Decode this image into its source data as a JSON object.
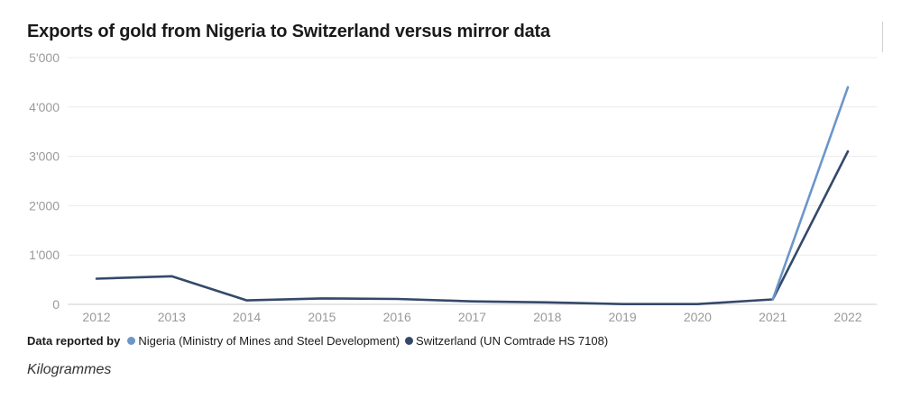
{
  "chart_data": {
    "type": "line",
    "title": "Exports of gold from Nigeria to Switzerland versus mirror data",
    "x": [
      "2012",
      "2013",
      "2014",
      "2015",
      "2016",
      "2017",
      "2018",
      "2019",
      "2020",
      "2021",
      "2022"
    ],
    "ylim": [
      0,
      5000
    ],
    "yticks": [
      0,
      1000,
      2000,
      3000,
      4000,
      5000
    ],
    "ytick_labels": [
      "0",
      "1'000",
      "2'000",
      "3'000",
      "4'000",
      "5'000"
    ],
    "series": [
      {
        "name": "Nigeria (Ministry of Mines and Steel Development)",
        "color": "#6b96c9",
        "values": [
          null,
          null,
          null,
          null,
          null,
          null,
          null,
          null,
          null,
          100,
          4400
        ]
      },
      {
        "name": "Switzerland (UN Comtrade HS 7108)",
        "color": "#34496a",
        "values": [
          520,
          570,
          80,
          120,
          110,
          60,
          40,
          5,
          5,
          100,
          3100
        ]
      }
    ],
    "legend_title": "Data reported by",
    "unit_label": "Kilogrammes",
    "legend_position": "bottom-left"
  }
}
